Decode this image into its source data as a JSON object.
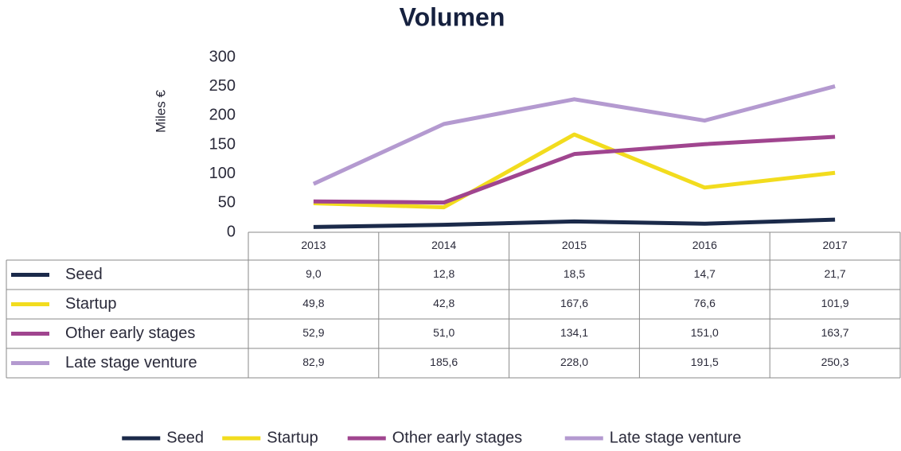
{
  "chart_data": {
    "type": "line",
    "title": "Volumen",
    "y_label": "Miles €",
    "categories": [
      "2013",
      "2014",
      "2015",
      "2016",
      "2017"
    ],
    "series": [
      {
        "name": "Seed",
        "color": "#1b2a4a",
        "values": [
          9.0,
          12.8,
          18.5,
          14.7,
          21.7
        ],
        "value_labels": [
          "9,0",
          "12,8",
          "18,5",
          "14,7",
          "21,7"
        ]
      },
      {
        "name": "Startup",
        "color": "#f2dc1e",
        "values": [
          49.8,
          42.8,
          167.6,
          76.6,
          101.9
        ],
        "value_labels": [
          "49,8",
          "42,8",
          "167,6",
          "76,6",
          "101,9"
        ]
      },
      {
        "name": "Other early stages",
        "color": "#a0458f",
        "values": [
          52.9,
          51.0,
          134.1,
          151.0,
          163.7
        ],
        "value_labels": [
          "52,9",
          "51,0",
          "134,1",
          "151,0",
          "163,7"
        ]
      },
      {
        "name": "Late stage venture",
        "color": "#b49ad0",
        "values": [
          82.9,
          185.6,
          228.0,
          191.5,
          250.3
        ],
        "value_labels": [
          "82,9",
          "185,6",
          "228,0",
          "191,5",
          "250,3"
        ]
      }
    ],
    "ylim": [
      0,
      300
    ],
    "yticks": [
      0,
      50,
      100,
      150,
      200,
      250,
      300
    ]
  }
}
